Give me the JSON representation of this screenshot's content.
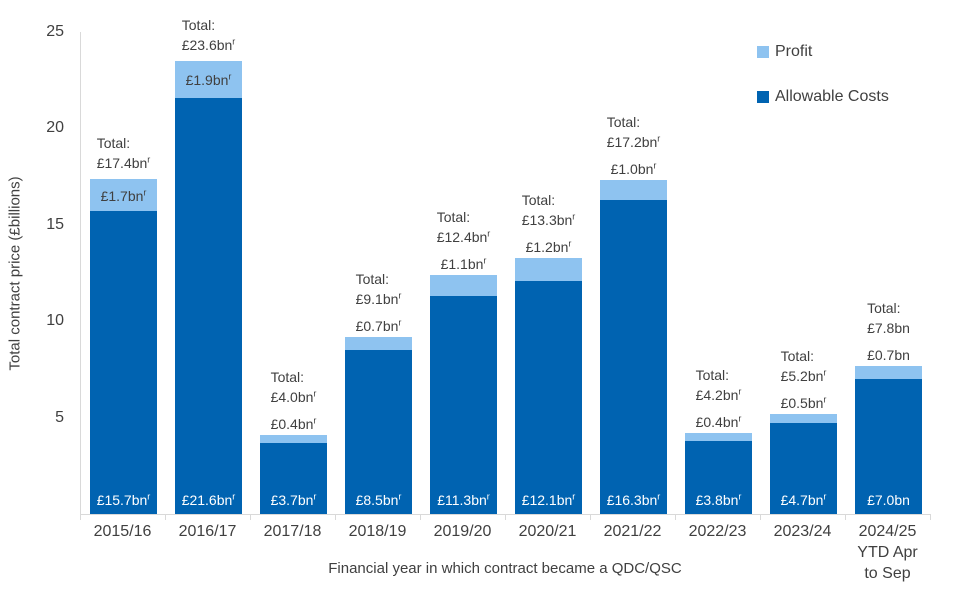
{
  "chart_data": {
    "type": "bar",
    "stacked": true,
    "title": "",
    "xlabel": "Financial year in which contract became a QDC/QSC",
    "ylabel": "Total contract price (£billions)",
    "ylim": [
      0,
      25
    ],
    "yticks": [
      5,
      10,
      15,
      20,
      25
    ],
    "grid": false,
    "legend_position": "top-right",
    "total_prefix": "Total:",
    "revision_marker": "r",
    "legend": [
      {
        "label": "Profit",
        "color": "#8EC3F0"
      },
      {
        "label": "Allowable Costs",
        "color": "#0063B1"
      }
    ],
    "categories": [
      "2015/16",
      "2016/17",
      "2017/18",
      "2018/19",
      "2019/20",
      "2020/21",
      "2021/22",
      "2022/23",
      "2023/24",
      "2024/25\nYTD Apr\nto Sep"
    ],
    "series": [
      {
        "name": "Profit",
        "values": [
          1.7,
          1.9,
          0.4,
          0.7,
          1.1,
          1.2,
          1.0,
          0.4,
          0.5,
          0.7
        ]
      },
      {
        "name": "Allowable Costs",
        "values": [
          15.7,
          21.6,
          3.7,
          8.5,
          11.3,
          12.1,
          16.3,
          3.8,
          4.7,
          7.0
        ]
      }
    ],
    "bars": [
      {
        "category": "2015/16",
        "profit": 1.7,
        "allowable_costs": 15.7,
        "total": 17.4,
        "total_label": "£17.4bn",
        "profit_label": "£1.7bn",
        "cost_label": "£15.7bn",
        "revised": true,
        "profit_label_inside": true
      },
      {
        "category": "2016/17",
        "profit": 1.9,
        "allowable_costs": 21.6,
        "total": 23.6,
        "total_label": "£23.6bn",
        "profit_label": "£1.9bn",
        "cost_label": "£21.6bn",
        "revised": true,
        "profit_label_inside": true
      },
      {
        "category": "2017/18",
        "profit": 0.4,
        "allowable_costs": 3.7,
        "total": 4.0,
        "total_label": "£4.0bn",
        "profit_label": "£0.4bn",
        "cost_label": "£3.7bn",
        "revised": true,
        "profit_label_inside": false
      },
      {
        "category": "2018/19",
        "profit": 0.7,
        "allowable_costs": 8.5,
        "total": 9.1,
        "total_label": "£9.1bn",
        "profit_label": "£0.7bn",
        "cost_label": "£8.5bn",
        "revised": true,
        "profit_label_inside": false
      },
      {
        "category": "2019/20",
        "profit": 1.1,
        "allowable_costs": 11.3,
        "total": 12.4,
        "total_label": "£12.4bn",
        "profit_label": "£1.1bn",
        "cost_label": "£11.3bn",
        "revised": true,
        "profit_label_inside": false
      },
      {
        "category": "2020/21",
        "profit": 1.2,
        "allowable_costs": 12.1,
        "total": 13.3,
        "total_label": "£13.3bn",
        "profit_label": "£1.2bn",
        "cost_label": "£12.1bn",
        "revised": true,
        "profit_label_inside": false
      },
      {
        "category": "2021/22",
        "profit": 1.0,
        "allowable_costs": 16.3,
        "total": 17.2,
        "total_label": "£17.2bn",
        "profit_label": "£1.0bn",
        "cost_label": "£16.3bn",
        "revised": true,
        "profit_label_inside": false
      },
      {
        "category": "2022/23",
        "profit": 0.4,
        "allowable_costs": 3.8,
        "total": 4.2,
        "total_label": "£4.2bn",
        "profit_label": "£0.4bn",
        "cost_label": "£3.8bn",
        "revised": true,
        "profit_label_inside": false
      },
      {
        "category": "2023/24",
        "profit": 0.5,
        "allowable_costs": 4.7,
        "total": 5.2,
        "total_label": "£5.2bn",
        "profit_label": "£0.5bn",
        "cost_label": "£4.7bn",
        "revised": true,
        "profit_label_inside": false
      },
      {
        "category": "2024/25\nYTD Apr\nto Sep",
        "profit": 0.7,
        "allowable_costs": 7.0,
        "total": 7.8,
        "total_label": "£7.8bn",
        "profit_label": "£0.7bn",
        "cost_label": "£7.0bn",
        "revised": false,
        "profit_label_inside": false
      }
    ]
  },
  "colors": {
    "profit": "#8EC3F0",
    "allowable_costs": "#0063B1",
    "axis_line": "#D9D9D9",
    "text": "#404040",
    "bar_inside_text": "#FFFFFF",
    "background": "#FFFFFF"
  }
}
